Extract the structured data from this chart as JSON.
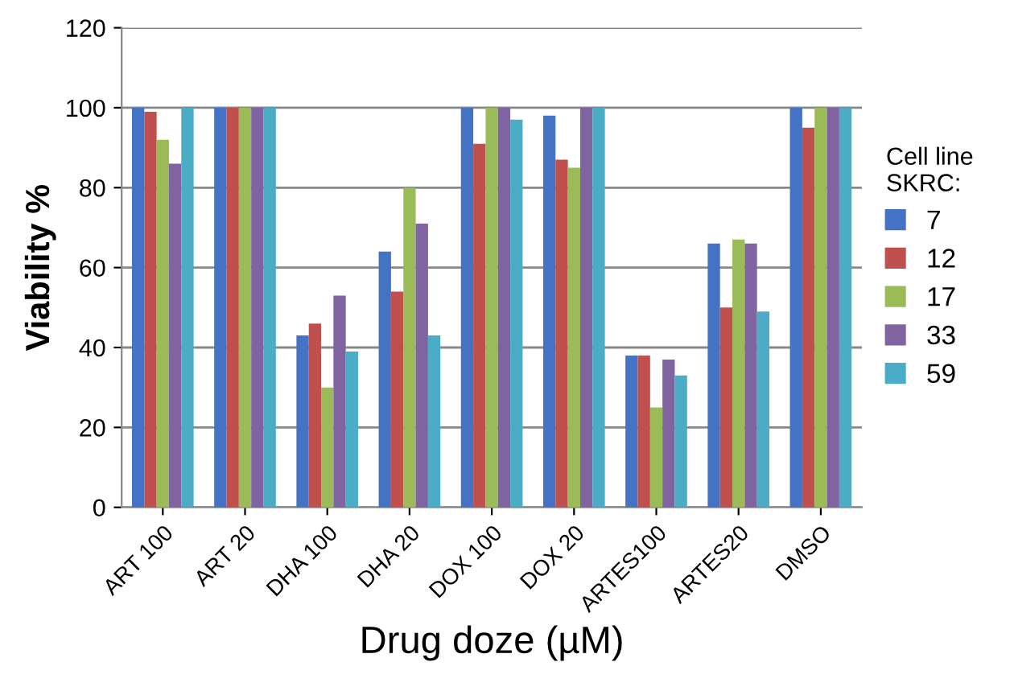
{
  "chart_data": {
    "type": "bar",
    "xlabel": "Drug doze (µM)",
    "ylabel": "Viability %",
    "legend_title": "Cell line\nSKRC:",
    "categories": [
      "ART 100",
      "ART 20",
      "DHA 100",
      "DHA 20",
      "DOX 100",
      "DOX 20",
      "ARTES100",
      "ARTES20",
      "DMSO"
    ],
    "series": [
      {
        "name": "7",
        "color": "#4472c4",
        "values": [
          100,
          100,
          43,
          64,
          100,
          98,
          38,
          66,
          100
        ]
      },
      {
        "name": "12",
        "color": "#c0504d",
        "values": [
          99,
          100,
          46,
          54,
          91,
          87,
          38,
          50,
          95
        ]
      },
      {
        "name": "17",
        "color": "#9bbb59",
        "values": [
          92,
          100,
          30,
          80,
          100,
          85,
          25,
          67,
          100
        ]
      },
      {
        "name": "33",
        "color": "#8064a2",
        "values": [
          86,
          100,
          53,
          71,
          100,
          100,
          37,
          66,
          100
        ]
      },
      {
        "name": "59",
        "color": "#4bacc6",
        "values": [
          100,
          100,
          39,
          43,
          97,
          100,
          33,
          49,
          100
        ]
      }
    ],
    "ylim": [
      0,
      120
    ],
    "yticks": [
      0,
      20,
      40,
      60,
      80,
      100,
      120
    ],
    "grid": "y",
    "legend": "right"
  }
}
